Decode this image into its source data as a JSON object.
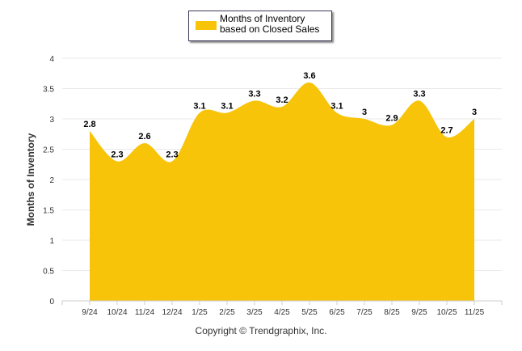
{
  "chart_data": {
    "type": "area",
    "title": "",
    "xlabel": "",
    "ylabel": "Months of Inventory",
    "categories": [
      "9/24",
      "10/24",
      "11/24",
      "12/24",
      "1/25",
      "2/25",
      "3/25",
      "4/25",
      "5/25",
      "6/25",
      "7/25",
      "8/25",
      "9/25",
      "10/25",
      "11/25"
    ],
    "series": [
      {
        "name": "Months of Inventory based on Closed Sales",
        "values": [
          2.8,
          2.3,
          2.6,
          2.3,
          3.1,
          3.1,
          3.3,
          3.2,
          3.6,
          3.1,
          3,
          2.9,
          3.3,
          2.7,
          3
        ],
        "color": "#f7c40a"
      }
    ],
    "ylim": [
      0,
      4
    ],
    "yticks": [
      "0",
      "0.5",
      "1",
      "1.5",
      "2",
      "2.5",
      "3",
      "3.5",
      "4"
    ],
    "grid": true,
    "legend": "top-center"
  },
  "legend_label": "Months of Inventory based on Closed Sales",
  "copyright": "Copyright © Trendgraphix, Inc."
}
